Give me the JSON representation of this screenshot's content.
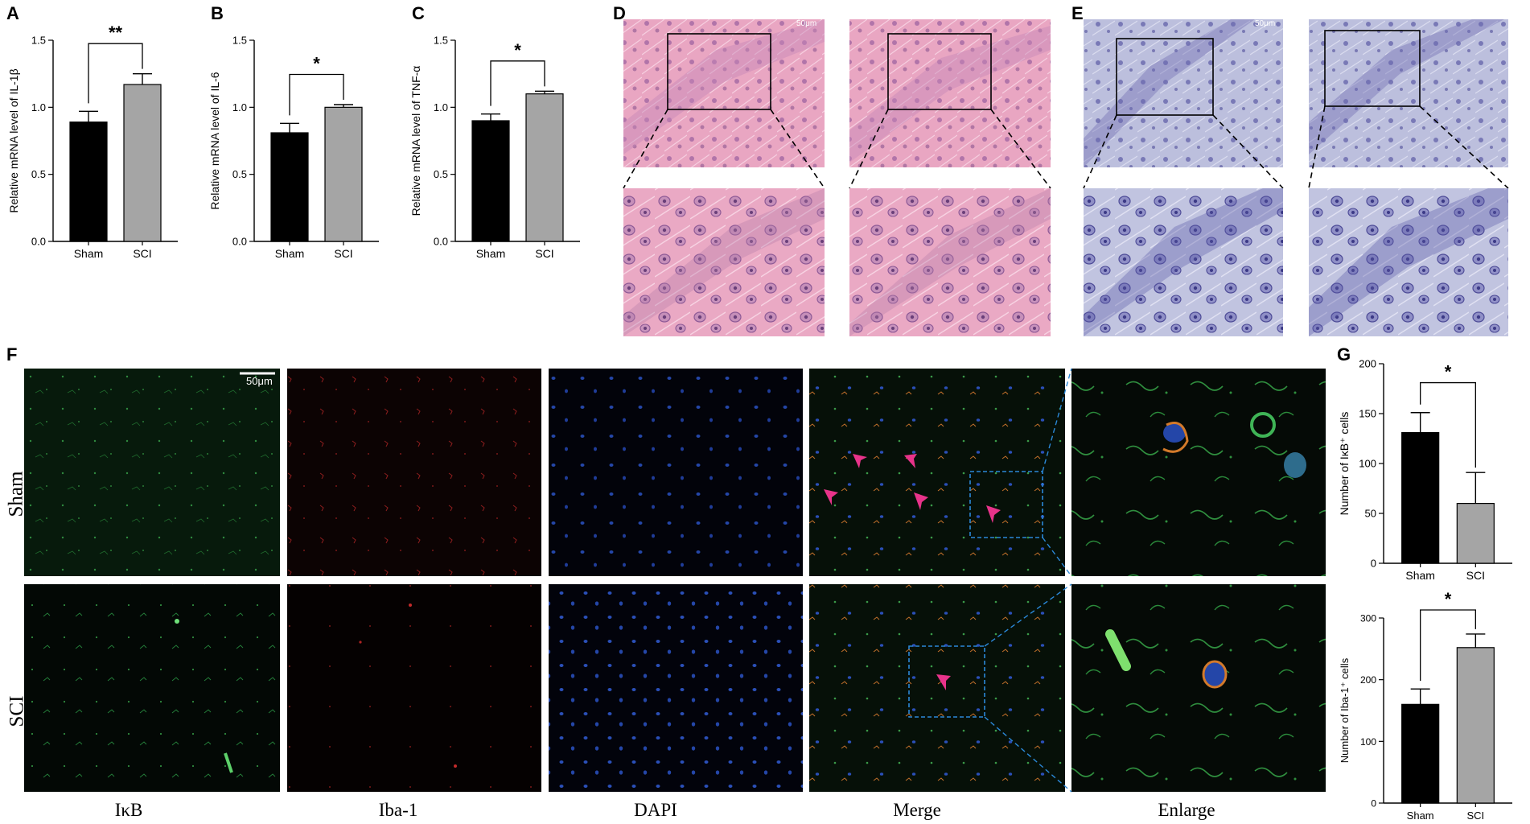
{
  "panel_letters": [
    "A",
    "B",
    "C",
    "D",
    "E",
    "F",
    "G"
  ],
  "histology": {
    "scale_label": "50μm",
    "he_color": "#e7a3c0",
    "nissl_color": "#b8bbd9"
  },
  "fluorescence": {
    "scale_label": "50μm",
    "row_labels": [
      "Sham",
      "SCI"
    ],
    "column_labels": [
      "IκB",
      "Iba-1",
      "DAPI",
      "Merge",
      "Enlarge"
    ],
    "arrow_color": "#e8338a",
    "box_color": "#2b88d8"
  },
  "chart_data": [
    {
      "id": "A",
      "type": "bar",
      "categories": [
        "Sham",
        "SCI"
      ],
      "values": [
        0.89,
        1.17
      ],
      "errors": [
        0.08,
        0.08
      ],
      "ylabel": "Relative mRNA level of IL-1β",
      "ylim": [
        0,
        1.5
      ],
      "yticks": [
        "0.0",
        "0.5",
        "1.0",
        "1.5"
      ],
      "significance": "**",
      "colors": [
        "#000000",
        "#a5a5a5"
      ]
    },
    {
      "id": "B",
      "type": "bar",
      "categories": [
        "Sham",
        "SCI"
      ],
      "values": [
        0.81,
        1.0
      ],
      "errors": [
        0.07,
        0.02
      ],
      "ylabel": "Relative mRNA level of IL-6",
      "ylim": [
        0,
        1.5
      ],
      "yticks": [
        "0.0",
        "0.5",
        "1.0",
        "1.5"
      ],
      "significance": "*",
      "colors": [
        "#000000",
        "#a5a5a5"
      ]
    },
    {
      "id": "C",
      "type": "bar",
      "categories": [
        "Sham",
        "SCI"
      ],
      "values": [
        0.9,
        1.1
      ],
      "errors": [
        0.05,
        0.02
      ],
      "ylabel": "Relative mRNA level of TNF-α",
      "ylim": [
        0,
        1.5
      ],
      "yticks": [
        "0.0",
        "0.5",
        "1.0",
        "1.5"
      ],
      "significance": "*",
      "colors": [
        "#000000",
        "#a5a5a5"
      ]
    },
    {
      "id": "G1",
      "type": "bar",
      "categories": [
        "Sham",
        "SCI"
      ],
      "values": [
        131,
        60
      ],
      "errors": [
        20,
        31
      ],
      "ylabel": "Number of IκB⁺ cells",
      "ylim": [
        0,
        200
      ],
      "yticks": [
        "0",
        "50",
        "100",
        "150",
        "200"
      ],
      "significance": "*",
      "colors": [
        "#000000",
        "#a5a5a5"
      ]
    },
    {
      "id": "G2",
      "type": "bar",
      "categories": [
        "Sham",
        "SCI"
      ],
      "values": [
        160,
        252
      ],
      "errors": [
        25,
        22
      ],
      "ylabel": "Number of Iba-1⁺ cells",
      "ylim": [
        0,
        300
      ],
      "yticks": [
        "0",
        "100",
        "200",
        "300"
      ],
      "significance": "*",
      "colors": [
        "#000000",
        "#a5a5a5"
      ]
    }
  ]
}
